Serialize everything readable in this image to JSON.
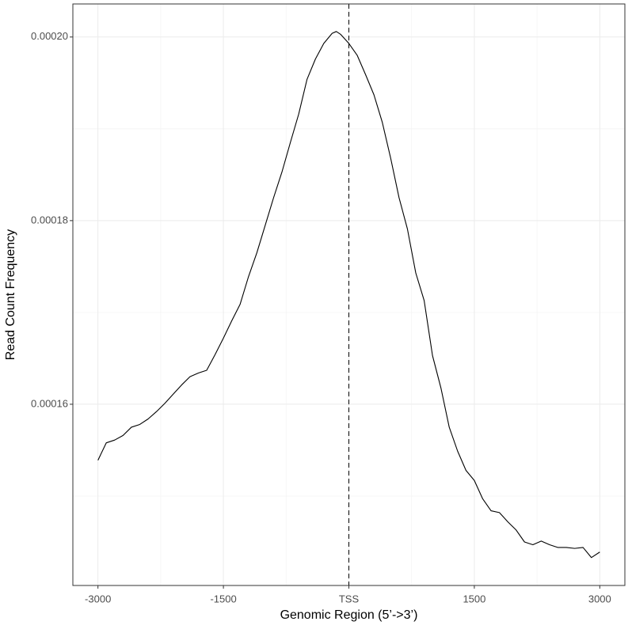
{
  "chart_data": {
    "type": "line",
    "xlabel": "Genomic Region (5’->3’)",
    "ylabel": "Read Count Frequency",
    "x": [
      -3000,
      -2900,
      -2800,
      -2700,
      -2600,
      -2500,
      -2400,
      -2300,
      -2200,
      -2100,
      -2000,
      -1900,
      -1800,
      -1700,
      -1600,
      -1500,
      -1400,
      -1300,
      -1200,
      -1100,
      -1000,
      -900,
      -800,
      -700,
      -600,
      -500,
      -400,
      -300,
      -200,
      -150,
      -100,
      0,
      100,
      200,
      300,
      400,
      500,
      600,
      700,
      800,
      900,
      1000,
      1100,
      1200,
      1300,
      1400,
      1500,
      1600,
      1700,
      1800,
      1900,
      2000,
      2100,
      2200,
      2300,
      2400,
      2500,
      2600,
      2700,
      2800,
      2900,
      3000
    ],
    "values": [
      0.0001539,
      0.0001558,
      0.0001561,
      0.0001566,
      0.0001575,
      0.0001578,
      0.0001584,
      0.0001592,
      0.0001601,
      0.0001611,
      0.0001621,
      0.000163,
      0.0001634,
      0.0001637,
      0.0001654,
      0.0001672,
      0.0001691,
      0.0001709,
      0.0001739,
      0.0001765,
      0.0001795,
      0.0001825,
      0.0001853,
      0.0001885,
      0.0001916,
      0.0001954,
      0.0001976,
      0.0001993,
      0.0002004,
      0.0002006,
      0.0002003,
      0.0001993,
      0.000198,
      0.0001959,
      0.0001937,
      0.0001907,
      0.0001868,
      0.0001825,
      0.0001791,
      0.0001743,
      0.0001713,
      0.0001653,
      0.0001618,
      0.0001575,
      0.0001549,
      0.0001528,
      0.0001517,
      0.0001497,
      0.0001484,
      0.0001482,
      0.0001472,
      0.0001463,
      0.000145,
      0.0001447,
      0.0001451,
      0.0001447,
      0.0001444,
      0.0001444,
      0.0001443,
      0.0001444,
      0.0001433,
      0.0001439
    ],
    "color": "#000000",
    "vline": 0,
    "xlim": [
      -3300,
      3300
    ],
    "ylim": [
      0.00014026,
      0.0002036
    ],
    "xticks": [
      -3000,
      -1500,
      {
        "value": 0,
        "label": "TSS"
      },
      1500,
      3000
    ],
    "yticks": [
      {
        "value": 0.00016,
        "label": "0.00016"
      },
      {
        "value": 0.00018,
        "label": "0.00018"
      },
      {
        "value": 0.0002,
        "label": "0.00020"
      }
    ],
    "minor_xticks": [
      -2250,
      -750,
      750,
      2250
    ],
    "minor_yticks": [
      0.00015,
      0.00017,
      0.00019
    ],
    "grid": true
  }
}
